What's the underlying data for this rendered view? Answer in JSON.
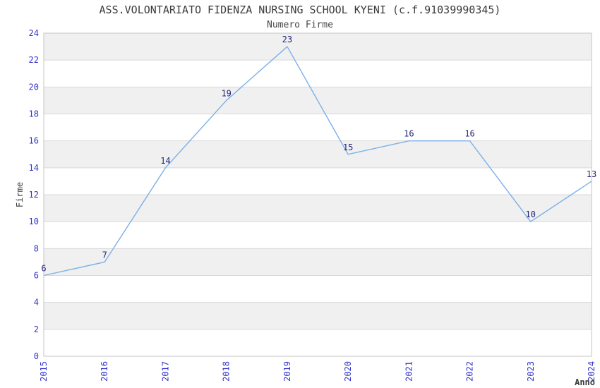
{
  "header": {
    "title": "ASS.VOLONTARIATO FIDENZA NURSING SCHOOL KYENI (c.f.91039990345)",
    "subtitle": "Numero Firme"
  },
  "axes": {
    "x_label": "Anno",
    "y_label": "Firme"
  },
  "chart_data": {
    "type": "line",
    "title": "ASS.VOLONTARIATO FIDENZA NURSING SCHOOL KYENI (c.f.91039990345)",
    "subtitle": "Numero Firme",
    "xlabel": "Anno",
    "ylabel": "Firme",
    "x": [
      2015,
      2016,
      2017,
      2018,
      2019,
      2020,
      2021,
      2022,
      2023,
      2024
    ],
    "values": [
      6,
      7,
      14,
      19,
      23,
      15,
      16,
      16,
      10,
      13
    ],
    "series_name": "Numero Firme",
    "point_labels": true,
    "ylim": [
      0,
      24
    ],
    "yticks": [
      0,
      2,
      4,
      6,
      8,
      10,
      12,
      14,
      16,
      18,
      20,
      22,
      24
    ],
    "xticks": [
      2015,
      2016,
      2017,
      2018,
      2019,
      2020,
      2021,
      2022,
      2023,
      2024
    ],
    "xtick_rotation": 90,
    "grid": true,
    "alternating_bands": true,
    "legend": false
  },
  "style": {
    "line_color": "#7cb0e6",
    "tick_label_color": "#3232cd",
    "point_label_color": "#26267a",
    "band_color": "#f0f0f0",
    "grid_color": "#d9d9d9",
    "plot_border_color": "#c6c6c6",
    "title_color": "#3c3c3c",
    "background_color": "#ffffff"
  }
}
